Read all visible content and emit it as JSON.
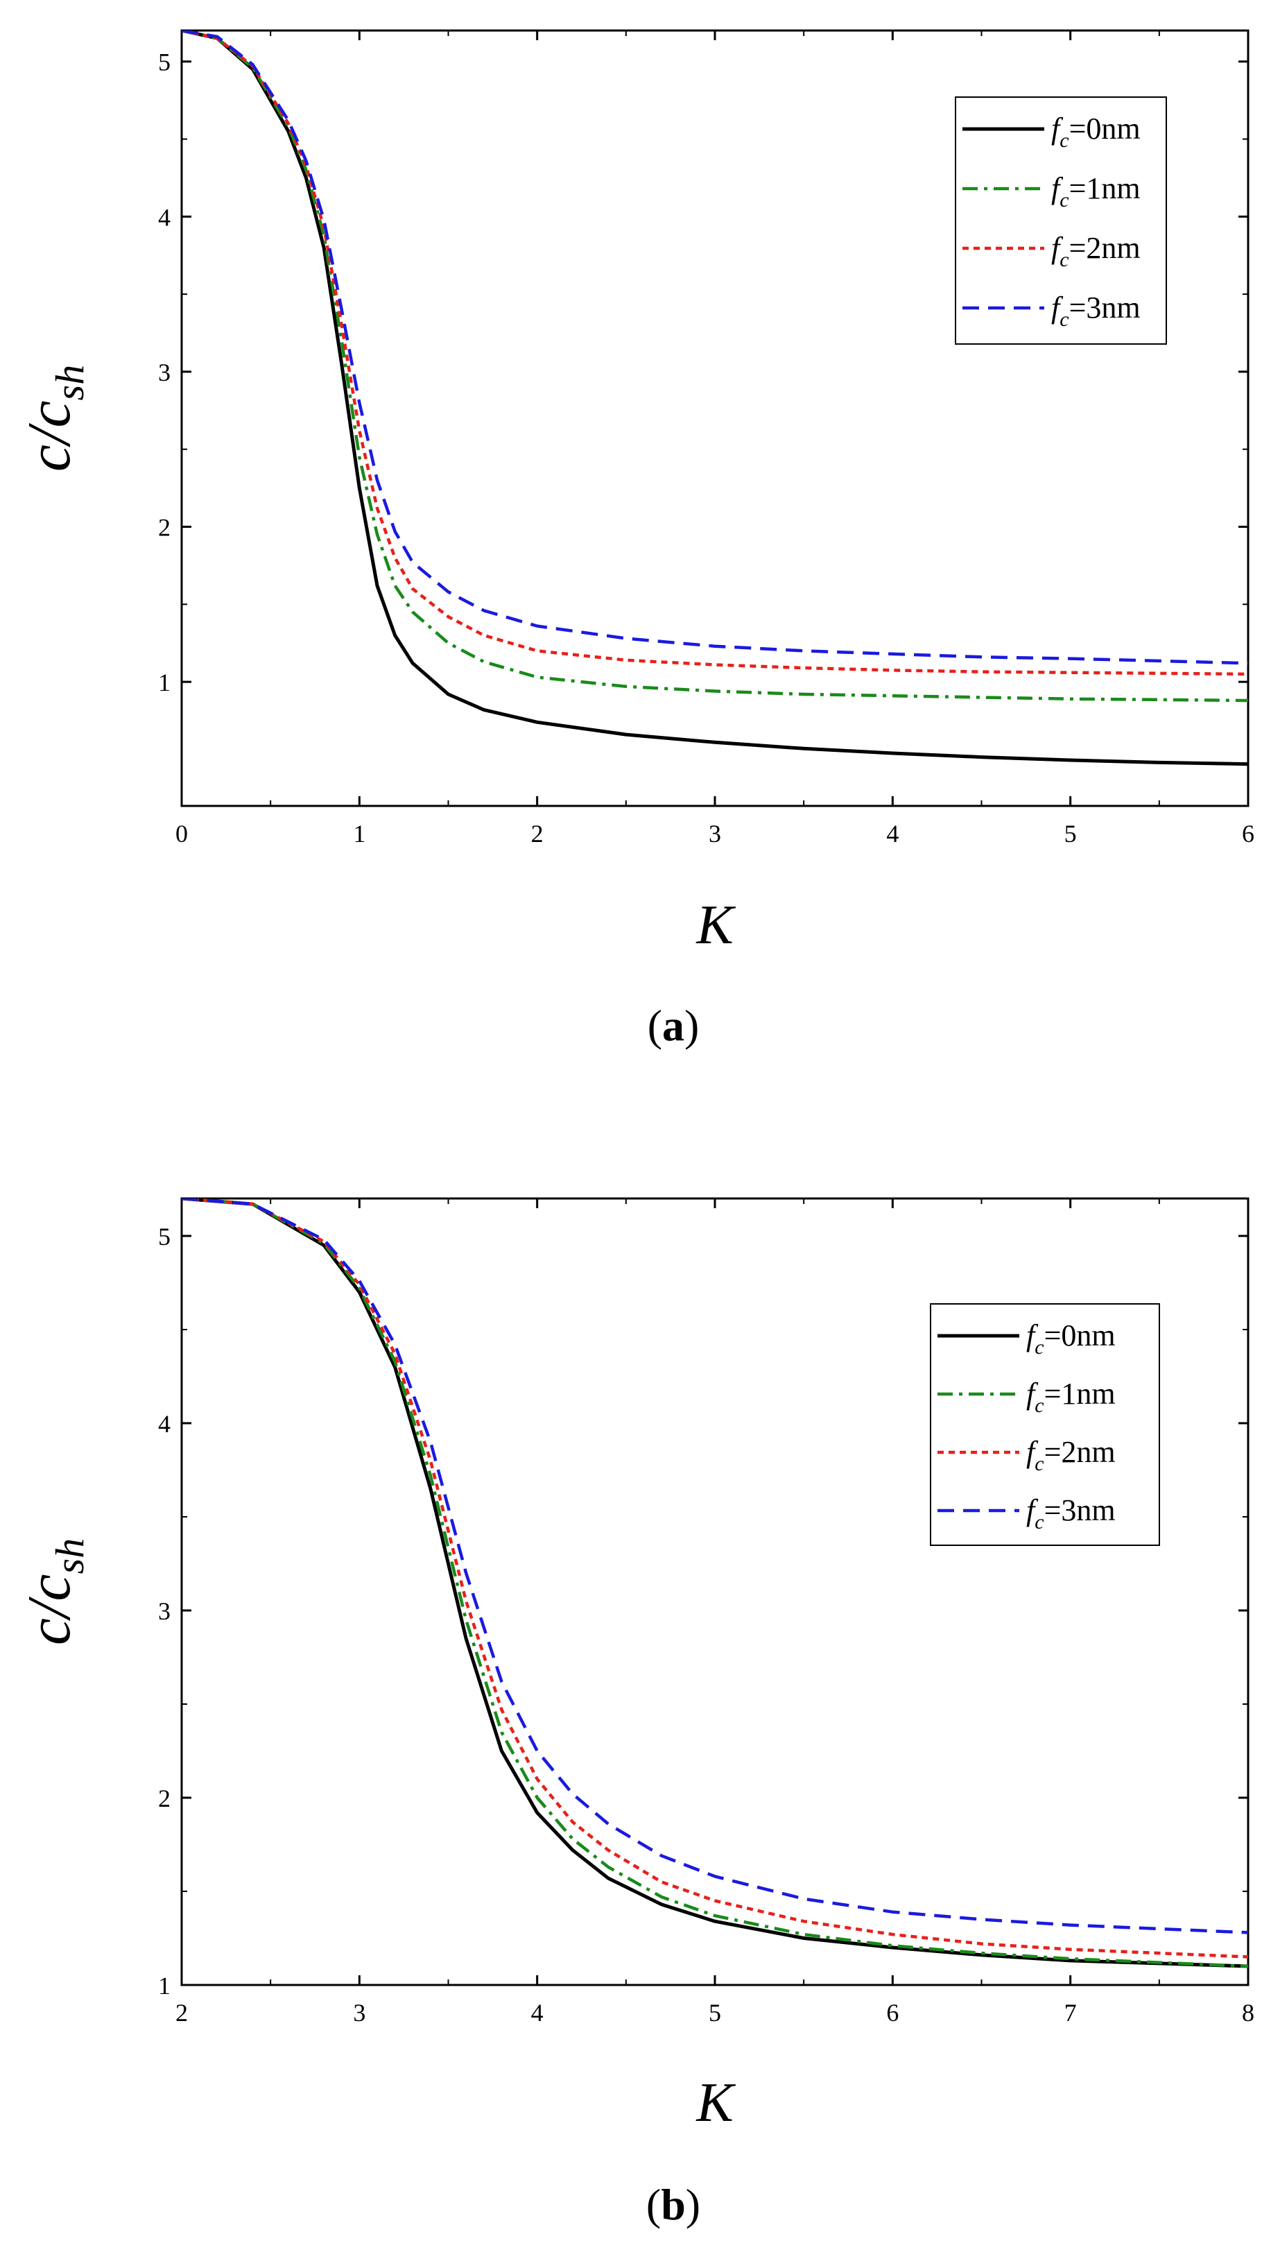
{
  "chart_data": [
    {
      "panel": "(a)",
      "panel_letter": "a",
      "type": "line",
      "xlabel": "K",
      "ylabel": "c/c_sh",
      "ylabel_main": "c/c",
      "ylabel_sub": "sh",
      "xlim": [
        0,
        6
      ],
      "ylim": [
        0.2,
        5.2
      ],
      "xticks": [
        0,
        1,
        2,
        3,
        4,
        5,
        6
      ],
      "yticks": [
        1,
        2,
        3,
        4,
        5
      ],
      "legend_position": "top-right",
      "series": [
        {
          "name": "f_c=0nm",
          "var": "f",
          "sub": "c",
          "label_tail": "=0nm",
          "color": "#000000",
          "style": "solid",
          "x": [
            0,
            0.2,
            0.4,
            0.6,
            0.7,
            0.8,
            0.9,
            1.0,
            1.1,
            1.2,
            1.3,
            1.5,
            1.7,
            2.0,
            2.5,
            3.0,
            3.5,
            4.0,
            4.5,
            5.0,
            5.5,
            6.0
          ],
          "y": [
            5.2,
            5.15,
            4.95,
            4.55,
            4.25,
            3.8,
            3.05,
            2.25,
            1.62,
            1.3,
            1.12,
            0.92,
            0.82,
            0.74,
            0.66,
            0.61,
            0.57,
            0.54,
            0.515,
            0.495,
            0.48,
            0.47
          ]
        },
        {
          "name": "f_c=1nm",
          "var": "f",
          "sub": "c",
          "label_tail": "=1nm",
          "color": "#1a8a1a",
          "style": "dashdot",
          "x": [
            0,
            0.2,
            0.4,
            0.6,
            0.7,
            0.8,
            0.9,
            1.0,
            1.1,
            1.2,
            1.3,
            1.5,
            1.7,
            2.0,
            2.5,
            3.0,
            3.5,
            4.0,
            4.5,
            5.0,
            5.5,
            6.0
          ],
          "y": [
            5.2,
            5.15,
            4.96,
            4.58,
            4.3,
            3.88,
            3.2,
            2.45,
            1.95,
            1.62,
            1.45,
            1.25,
            1.13,
            1.03,
            0.97,
            0.94,
            0.92,
            0.91,
            0.9,
            0.89,
            0.885,
            0.88
          ]
        },
        {
          "name": "f_c=2nm",
          "var": "f",
          "sub": "c",
          "label_tail": "=2nm",
          "color": "#e8201a",
          "style": "dotted",
          "x": [
            0,
            0.2,
            0.4,
            0.6,
            0.7,
            0.8,
            0.9,
            1.0,
            1.1,
            1.2,
            1.3,
            1.5,
            1.7,
            2.0,
            2.5,
            3.0,
            3.5,
            4.0,
            4.5,
            5.0,
            5.5,
            6.0
          ],
          "y": [
            5.2,
            5.15,
            4.97,
            4.6,
            4.33,
            3.93,
            3.3,
            2.62,
            2.12,
            1.8,
            1.6,
            1.42,
            1.3,
            1.2,
            1.14,
            1.11,
            1.09,
            1.075,
            1.065,
            1.06,
            1.055,
            1.05
          ]
        },
        {
          "name": "f_c=3nm",
          "var": "f",
          "sub": "c",
          "label_tail": "=3nm",
          "color": "#1a1ae0",
          "style": "dashed",
          "x": [
            0,
            0.2,
            0.4,
            0.6,
            0.7,
            0.8,
            0.9,
            1.0,
            1.1,
            1.2,
            1.3,
            1.5,
            1.7,
            2.0,
            2.5,
            3.0,
            3.5,
            4.0,
            4.5,
            5.0,
            5.5,
            6.0
          ],
          "y": [
            5.2,
            5.16,
            4.98,
            4.62,
            4.36,
            3.98,
            3.4,
            2.8,
            2.3,
            1.97,
            1.77,
            1.58,
            1.46,
            1.36,
            1.28,
            1.23,
            1.2,
            1.18,
            1.16,
            1.15,
            1.135,
            1.12
          ]
        }
      ]
    },
    {
      "panel": "(b)",
      "panel_letter": "b",
      "type": "line",
      "xlabel": "K",
      "ylabel": "c/c_sh",
      "ylabel_main": "c/c",
      "ylabel_sub": "sh",
      "xlim": [
        2,
        8
      ],
      "ylim": [
        1.0,
        5.2
      ],
      "xticks": [
        2,
        3,
        4,
        5,
        6,
        7,
        8
      ],
      "yticks": [
        1,
        2,
        3,
        4,
        5
      ],
      "legend_position": "top-right",
      "series": [
        {
          "name": "f_c=0nm",
          "var": "f",
          "sub": "c",
          "label_tail": "=0nm",
          "color": "#000000",
          "style": "solid",
          "x": [
            2.0,
            2.4,
            2.8,
            3.0,
            3.2,
            3.4,
            3.6,
            3.8,
            4.0,
            4.2,
            4.4,
            4.7,
            5.0,
            5.5,
            6.0,
            6.5,
            7.0,
            7.5,
            8.0
          ],
          "y": [
            5.2,
            5.17,
            4.95,
            4.7,
            4.3,
            3.65,
            2.85,
            2.25,
            1.92,
            1.72,
            1.57,
            1.43,
            1.34,
            1.25,
            1.2,
            1.16,
            1.13,
            1.115,
            1.1
          ]
        },
        {
          "name": "f_c=1nm",
          "var": "f",
          "sub": "c",
          "label_tail": "=1nm",
          "color": "#1a8a1a",
          "style": "dashdot",
          "x": [
            2.0,
            2.4,
            2.8,
            3.0,
            3.2,
            3.4,
            3.6,
            3.8,
            4.0,
            4.2,
            4.4,
            4.7,
            5.0,
            5.5,
            6.0,
            6.5,
            7.0,
            7.5,
            8.0
          ],
          "y": [
            5.2,
            5.17,
            4.96,
            4.72,
            4.33,
            3.72,
            2.95,
            2.35,
            2.0,
            1.78,
            1.63,
            1.47,
            1.37,
            1.27,
            1.21,
            1.17,
            1.14,
            1.12,
            1.1
          ]
        },
        {
          "name": "f_c=2nm",
          "var": "f",
          "sub": "c",
          "label_tail": "=2nm",
          "color": "#e8201a",
          "style": "dotted",
          "x": [
            2.0,
            2.4,
            2.8,
            3.0,
            3.2,
            3.4,
            3.6,
            3.8,
            4.0,
            4.2,
            4.4,
            4.7,
            5.0,
            5.5,
            6.0,
            6.5,
            7.0,
            7.5,
            8.0
          ],
          "y": [
            5.2,
            5.17,
            4.97,
            4.74,
            4.37,
            3.8,
            3.05,
            2.47,
            2.1,
            1.87,
            1.72,
            1.55,
            1.45,
            1.34,
            1.27,
            1.22,
            1.19,
            1.17,
            1.15
          ]
        },
        {
          "name": "f_c=3nm",
          "var": "f",
          "sub": "c",
          "label_tail": "=3nm",
          "color": "#1a1ae0",
          "style": "dashed",
          "x": [
            2.0,
            2.4,
            2.8,
            3.0,
            3.2,
            3.4,
            3.6,
            3.8,
            4.0,
            4.2,
            4.4,
            4.7,
            5.0,
            5.5,
            6.0,
            6.5,
            7.0,
            7.5,
            8.0
          ],
          "y": [
            5.2,
            5.17,
            4.98,
            4.76,
            4.42,
            3.9,
            3.2,
            2.62,
            2.25,
            2.02,
            1.86,
            1.69,
            1.58,
            1.46,
            1.39,
            1.35,
            1.32,
            1.3,
            1.28
          ]
        }
      ]
    }
  ]
}
